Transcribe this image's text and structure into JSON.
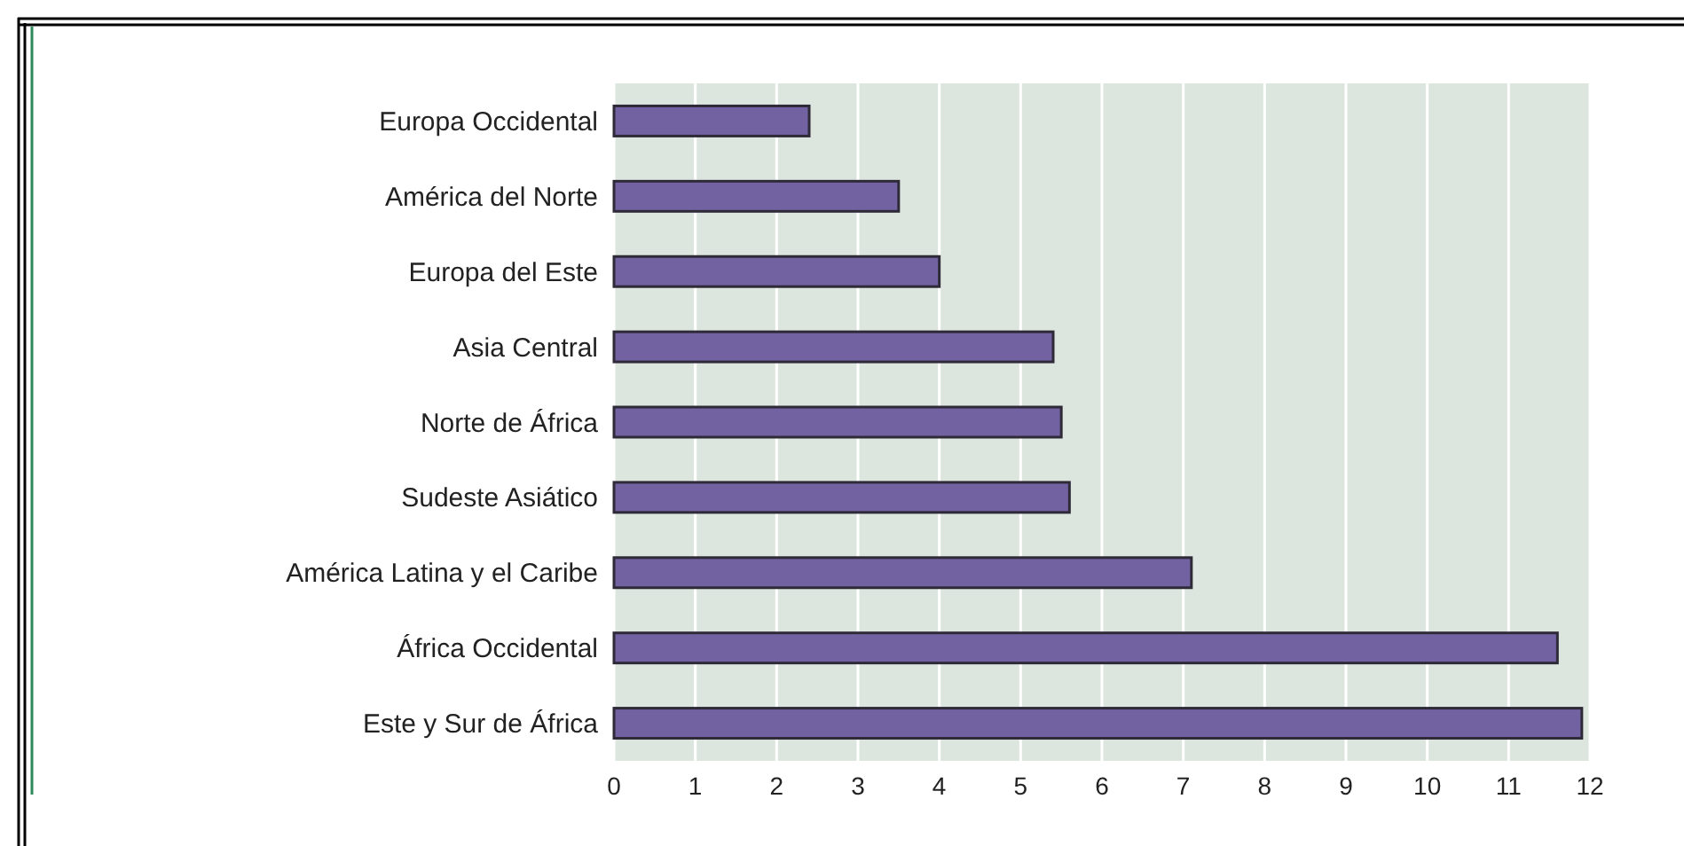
{
  "chart_data": {
    "type": "bar",
    "orientation": "horizontal",
    "categories": [
      "Europa Occidental",
      "América del Norte",
      "Europa del Este",
      "Asia Central",
      "Norte de África",
      "Sudeste Asiático",
      "América Latina y el Caribe",
      "África Occidental",
      "Este y Sur de África"
    ],
    "values": [
      2.4,
      3.5,
      4.0,
      5.4,
      5.5,
      5.6,
      7.1,
      11.6,
      11.9
    ],
    "color": "#7262a2",
    "xlim": [
      0,
      12
    ],
    "xticks": [
      0,
      1,
      2,
      3,
      4,
      5,
      6,
      7,
      8,
      9,
      10,
      11,
      12
    ],
    "grid": "x"
  }
}
